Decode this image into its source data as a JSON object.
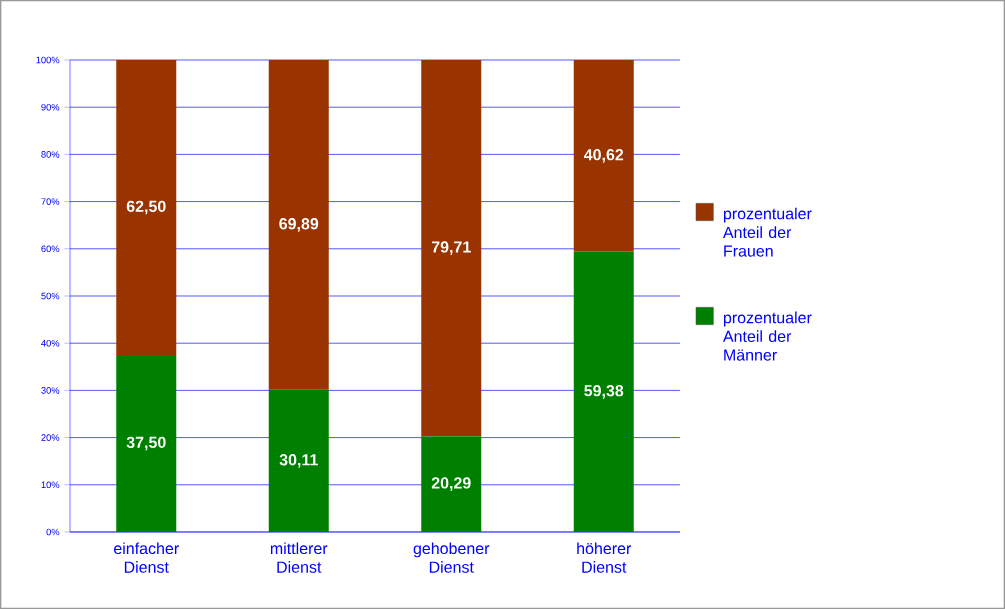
{
  "chart_data": {
    "type": "bar",
    "stacked": true,
    "categories": [
      "einfacher Dienst",
      "mittlerer Dienst",
      "gehobener Dienst",
      "höherer Dienst"
    ],
    "series": [
      {
        "name": "prozentualer Anteil der Männer",
        "color": "#008000",
        "values": [
          37.5,
          30.11,
          20.29,
          59.38
        ],
        "value_labels": [
          "37,50",
          "30,11",
          "20,29",
          "59,38"
        ]
      },
      {
        "name": "prozentualer Anteil der Frauen",
        "color": "#993300",
        "values": [
          62.5,
          69.89,
          79.71,
          40.62
        ],
        "value_labels": [
          "62,50",
          "69,89",
          "79,71",
          "40,62"
        ]
      }
    ],
    "ylim": [
      0,
      100
    ],
    "yticks": [
      {
        "value": 0,
        "label": "0%"
      },
      {
        "value": 10,
        "label": "10%"
      },
      {
        "value": 20,
        "label": "20%"
      },
      {
        "value": 30,
        "label": "30%"
      },
      {
        "value": 40,
        "label": "40%"
      },
      {
        "value": 50,
        "label": "50%"
      },
      {
        "value": 60,
        "label": "60%"
      },
      {
        "value": 70,
        "label": "70%"
      },
      {
        "value": 80,
        "label": "80%"
      },
      {
        "value": 90,
        "label": "90%"
      },
      {
        "value": 100,
        "label": "100%"
      }
    ],
    "grid": "y",
    "legend": "right"
  }
}
